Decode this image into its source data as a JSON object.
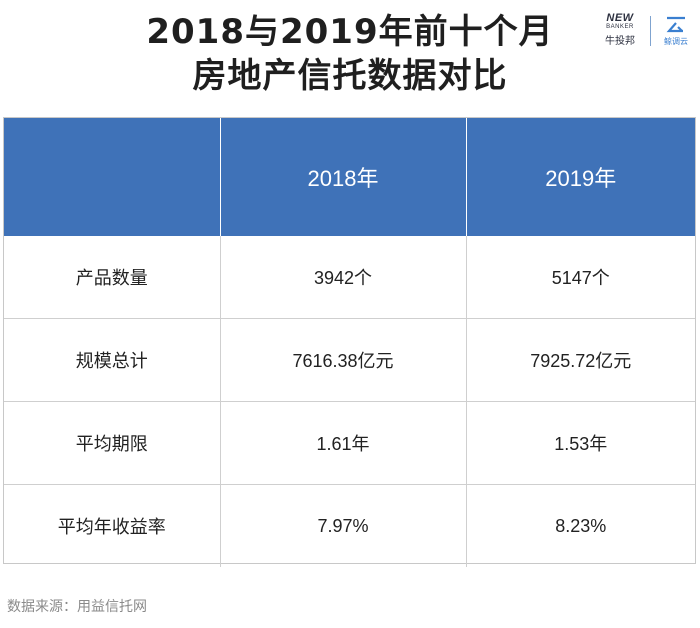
{
  "title": {
    "line1": "2018与2019年前十个月",
    "line2": "房地产信托数据对比"
  },
  "logos": {
    "newbanker_text": "NEW",
    "banker_text": "BANKER",
    "newbanker_cn": "牛投邦",
    "yun_cn": "鲸调云",
    "colors": {
      "newbanker": "#2d3140",
      "yun": "#3a7fd0"
    }
  },
  "table": {
    "header": [
      "",
      "2018年",
      "2019年"
    ],
    "rows": [
      {
        "label": "产品数量",
        "y2018": "3942个",
        "y2019": "5147个"
      },
      {
        "label": "规模总计",
        "y2018": "7616.38亿元",
        "y2019": "7925.72亿元"
      },
      {
        "label": "平均期限",
        "y2018": "1.61年",
        "y2019": "1.53年"
      },
      {
        "label": "平均年收益率",
        "y2018": "7.97%",
        "y2019": "8.23%"
      }
    ],
    "colors": {
      "header_bg": "#3f72b8",
      "header_text": "#ffffff"
    }
  },
  "source": "数据来源：用益信托网"
}
